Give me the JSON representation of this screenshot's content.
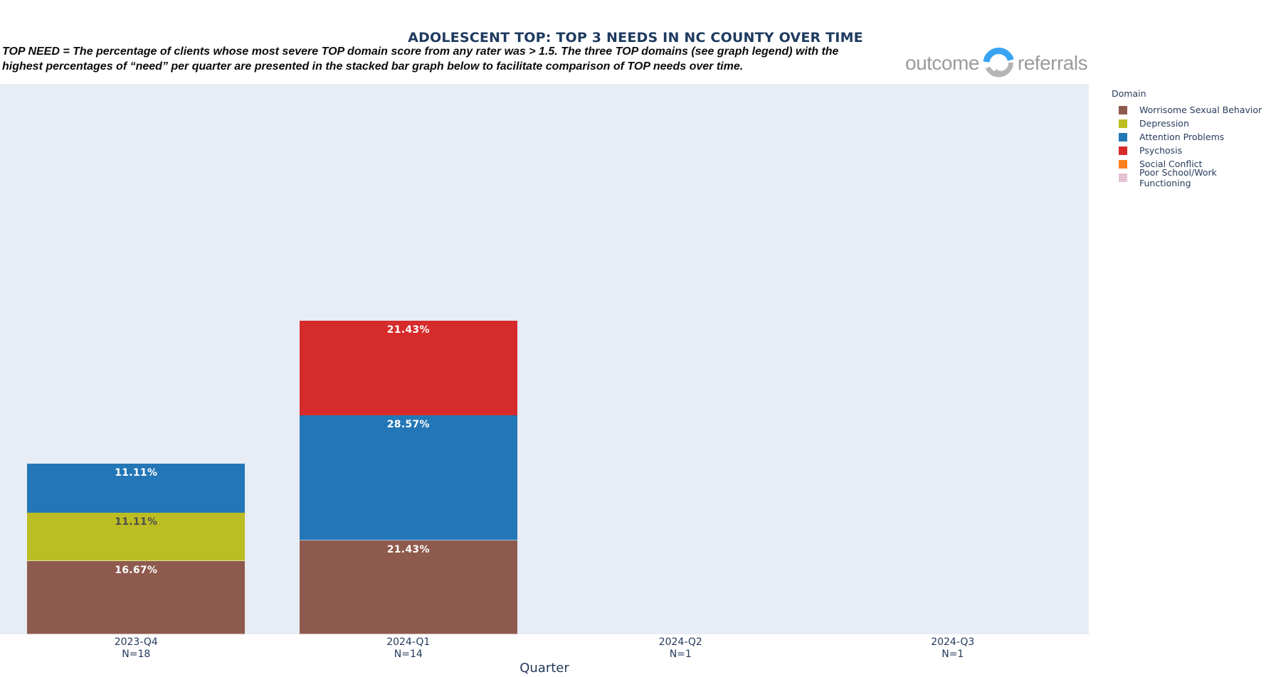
{
  "header": {
    "title": "ADOLESCENT TOP: TOP 3 NEEDS IN NC COUNTY OVER TIME",
    "subtitle_line1": "TOP NEED = The percentage of clients whose most severe TOP domain score from any rater was > 1.5.  The three TOP domains (see graph legend) with the",
    "subtitle_line2": "highest percentages of “need” per quarter are presented in the stacked bar graph below to facilitate comparison of TOP needs over time.",
    "logo": {
      "word1": "outcome",
      "word2": "referrals"
    }
  },
  "chart_data": {
    "type": "bar",
    "stacked": true,
    "title": "ADOLESCENT TOP: TOP 3 NEEDS IN NC COUNTY OVER TIME",
    "xlabel": "Quarter",
    "value_unit": "percent",
    "legend_title": "Domain",
    "legend_position": "right",
    "plot_background": "#e7ecf5",
    "axis_text_color": "#24395b",
    "categories": [
      "2023-Q4",
      "2024-Q1",
      "2024-Q2",
      "2024-Q3"
    ],
    "sample_sizes": [
      "N=18",
      "N=14",
      "N=1",
      "N=1"
    ],
    "domains": [
      {
        "name": "Worrisome Sexual Behavior",
        "color": "#8e5a4d"
      },
      {
        "name": "Depression",
        "color": "#bcbd22"
      },
      {
        "name": "Attention Problems",
        "color": "#2477b6"
      },
      {
        "name": "Psychosis",
        "color": "#d62b2b"
      },
      {
        "name": "Social Conflict",
        "color": "#fd7f20"
      },
      {
        "name": "Poor School/Work Functioning",
        "color": "#eccbd9",
        "texture": "dots",
        "texture_dot_color": "#cf93b2"
      }
    ],
    "bars": [
      {
        "category": "2023-Q4",
        "segments": [
          {
            "domain": "Worrisome Sexual Behavior",
            "value": 16.67,
            "label": "16.67%",
            "label_color": "#ffffff"
          },
          {
            "domain": "Depression",
            "value": 11.11,
            "label": "11.11%",
            "label_color": "#4d4d4d"
          },
          {
            "domain": "Attention Problems",
            "value": 11.11,
            "label": "11.11%",
            "label_color": "#ffffff"
          }
        ]
      },
      {
        "category": "2024-Q1",
        "segments": [
          {
            "domain": "Worrisome Sexual Behavior",
            "value": 21.43,
            "label": "21.43%",
            "label_color": "#ffffff"
          },
          {
            "domain": "Attention Problems",
            "value": 28.57,
            "label": "28.57%",
            "label_color": "#ffffff"
          },
          {
            "domain": "Psychosis",
            "value": 21.43,
            "label": "21.43%",
            "label_color": "#ffffff"
          }
        ]
      },
      {
        "category": "2024-Q2",
        "segments": []
      },
      {
        "category": "2024-Q3",
        "segments": []
      }
    ]
  }
}
